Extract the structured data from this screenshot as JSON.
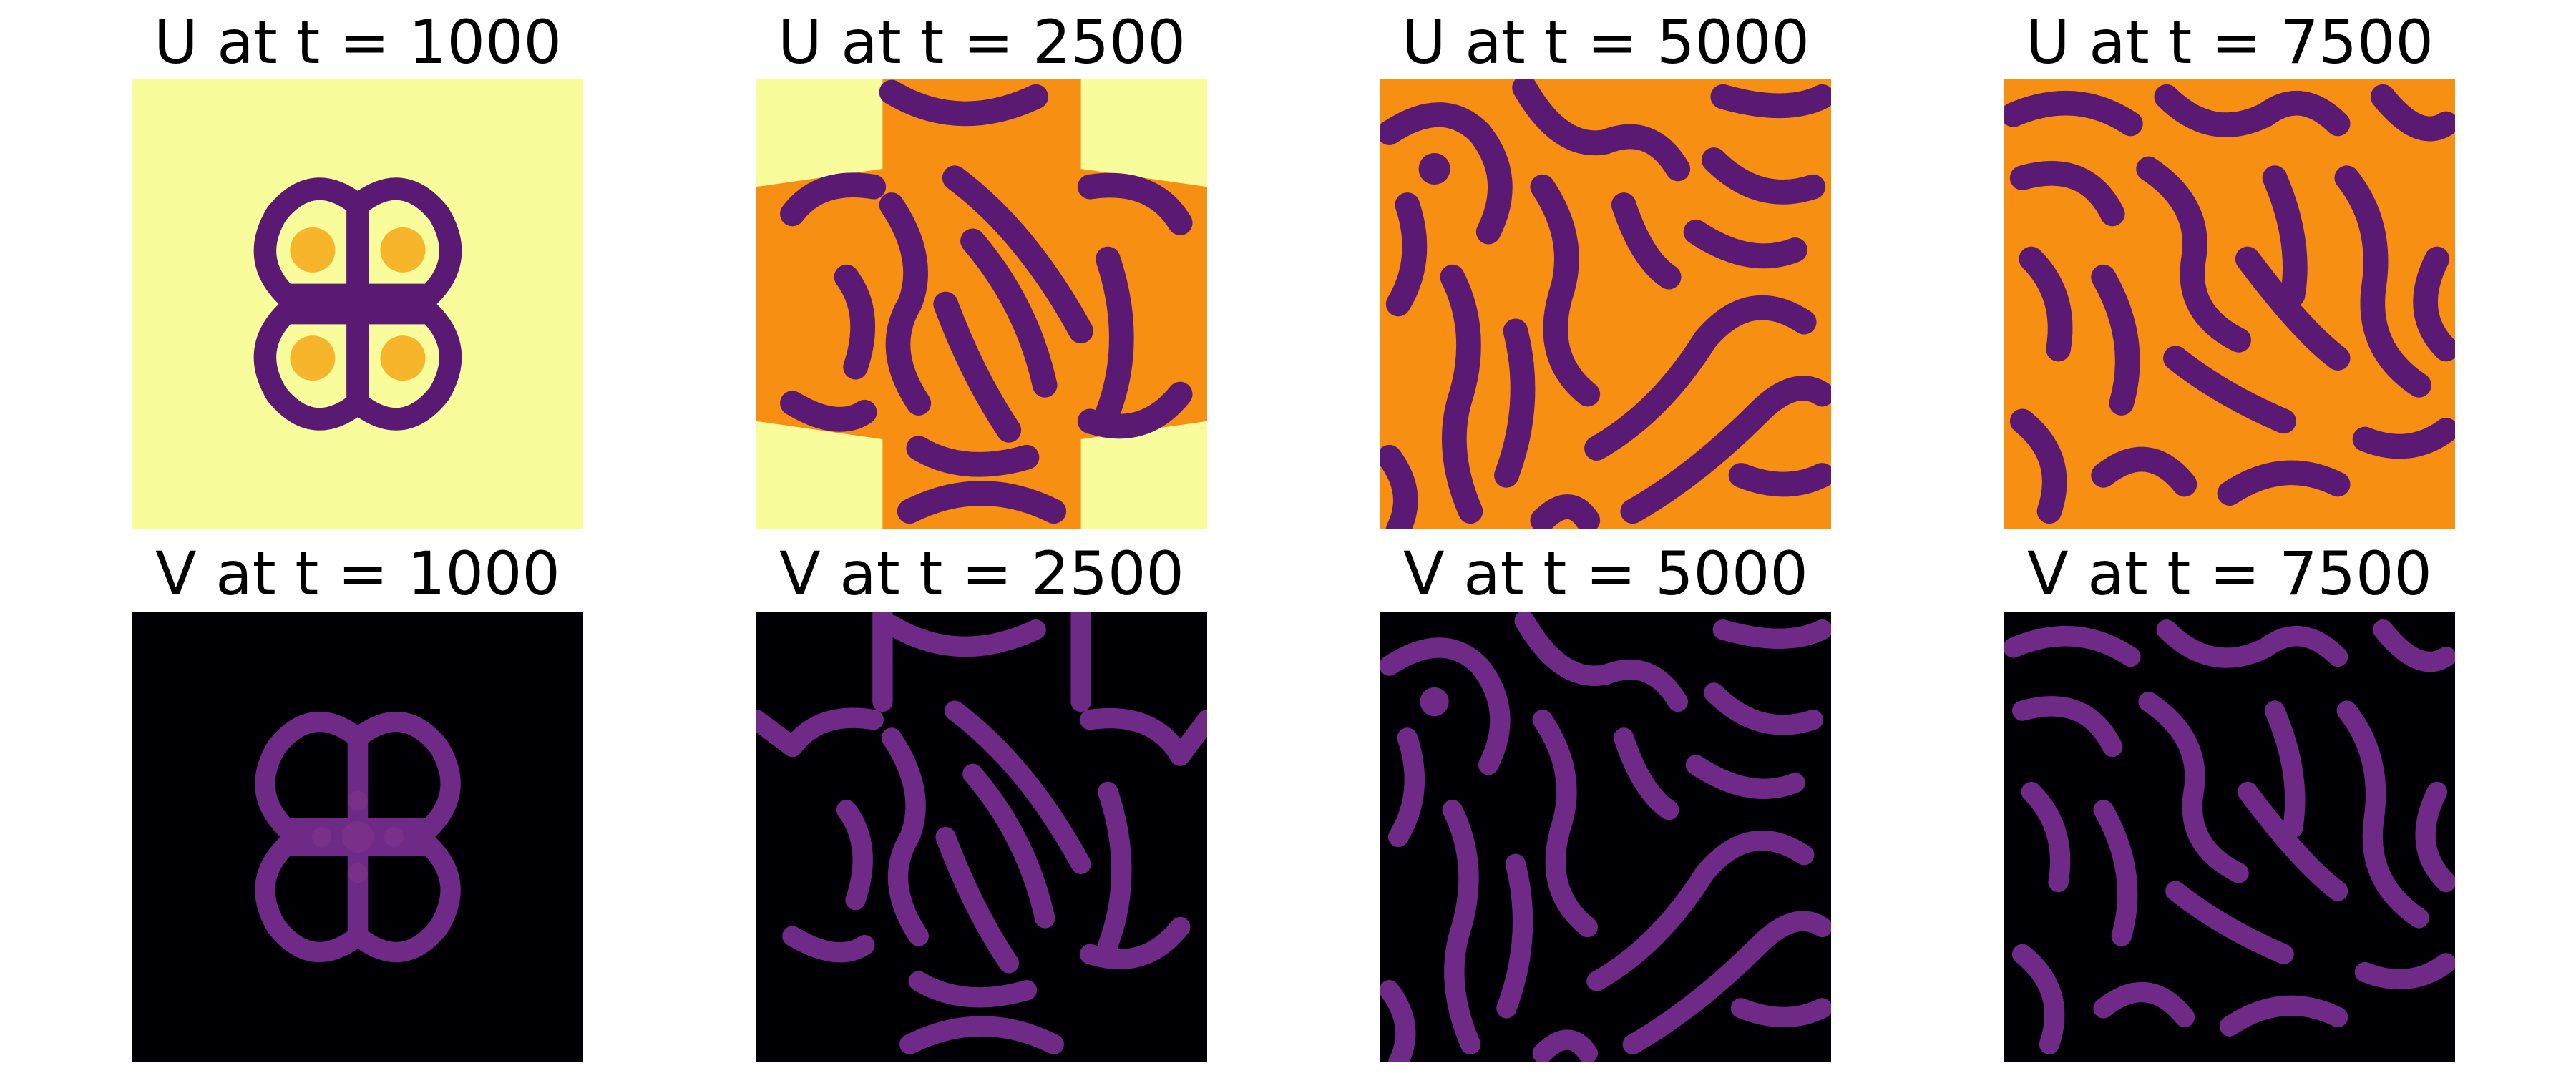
{
  "figure": {
    "panels": [
      {
        "title": "U at t = 1000",
        "field": "U",
        "time": 1000,
        "colormap": "inferno",
        "stage": "compact ring of four petal blobs on uniform pale-yellow background"
      },
      {
        "title": "U at t = 2500",
        "field": "U",
        "time": 2500,
        "colormap": "inferno",
        "stage": "pattern expanding outward with cross-shaped front"
      },
      {
        "title": "U at t = 5000",
        "field": "U",
        "time": 5000,
        "colormap": "inferno",
        "stage": "labyrinthine stripes filling the domain"
      },
      {
        "title": "U at t = 7500",
        "field": "U",
        "time": 7500,
        "colormap": "inferno",
        "stage": "mature labyrinthine stripes"
      },
      {
        "title": "V at t = 1000",
        "field": "V",
        "time": 1000,
        "colormap": "inferno",
        "stage": "compact ring of four petal blobs on black background"
      },
      {
        "title": "V at t = 2500",
        "field": "V",
        "time": 2500,
        "colormap": "inferno",
        "stage": "pattern expanding outward with cross-shaped front"
      },
      {
        "title": "V at t = 5000",
        "field": "V",
        "time": 5000,
        "colormap": "inferno",
        "stage": "labyrinthine stripes filling the domain"
      },
      {
        "title": "V at t = 7500",
        "field": "V",
        "time": 7500,
        "colormap": "inferno",
        "stage": "mature labyrinthine stripes"
      }
    ],
    "colors": {
      "u_background": "#f8fc9a",
      "u_fill": "#f78f13",
      "u_stripe": "#5a1a73",
      "u_stripe_core": "#3f0f62",
      "v_background": "#000004",
      "v_stripe": "#6f2a87",
      "v_stripe_core": "#8c3a8e"
    }
  }
}
